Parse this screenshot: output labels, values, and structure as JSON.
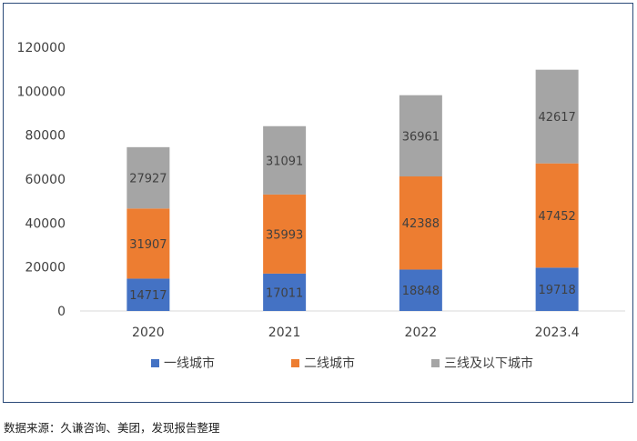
{
  "chart_data": {
    "type": "bar",
    "stacked": true,
    "categories": [
      "2020",
      "2021",
      "2022",
      "2023.4"
    ],
    "series": [
      {
        "name": "一线城市",
        "color": "#4472c4",
        "values": [
          14717,
          17011,
          18848,
          19718
        ]
      },
      {
        "name": "二线城市",
        "color": "#ed7d31",
        "values": [
          31907,
          35993,
          42388,
          47452
        ]
      },
      {
        "name": "三线及以下城市",
        "color": "#a5a5a5",
        "values": [
          27927,
          31091,
          36961,
          42617
        ]
      }
    ],
    "ylim": [
      0,
      120000
    ],
    "yticks": [
      0,
      20000,
      40000,
      60000,
      80000,
      100000,
      120000
    ],
    "grid": false,
    "legend_position": "bottom"
  },
  "source_note": "数据来源：久谦咨询、美团，发现报告整理"
}
